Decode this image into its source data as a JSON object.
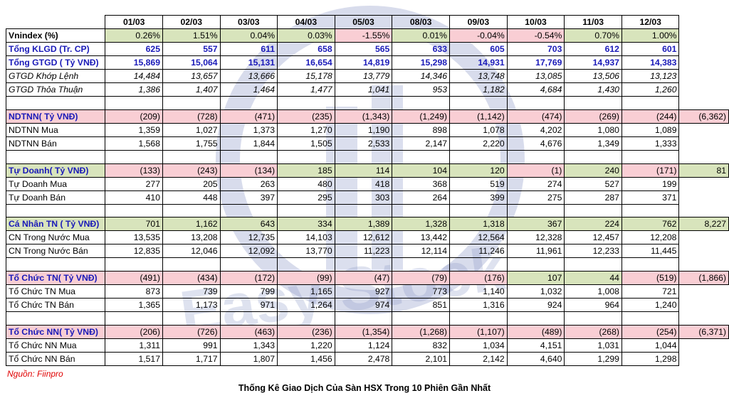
{
  "dates": [
    "01/03",
    "02/03",
    "03/03",
    "04/03",
    "05/03",
    "08/03",
    "09/03",
    "10/03",
    "11/03",
    "12/03"
  ],
  "rows": [
    {
      "type": "data",
      "label": "Vnindex (%)",
      "style": "bold",
      "values": [
        "0.26%",
        "1.51%",
        "0.04%",
        "0.03%",
        "-1.55%",
        "0.01%",
        "-0.04%",
        "-0.54%",
        "0.70%",
        "1.00%"
      ],
      "signs": [
        "pos",
        "pos",
        "pos",
        "pos",
        "neg",
        "pos",
        "neg",
        "neg",
        "pos",
        "pos"
      ],
      "total": null
    },
    {
      "type": "data",
      "label": "Tổng KLGD (Tr. CP)",
      "style": "blue",
      "values": [
        "625",
        "557",
        "611",
        "658",
        "565",
        "633",
        "605",
        "703",
        "612",
        "601"
      ],
      "signs": [],
      "total": null
    },
    {
      "type": "data",
      "label": "Tổng GTGD ( Tỷ VNĐ)",
      "style": "blue",
      "values": [
        "15,869",
        "15,064",
        "15,131",
        "16,654",
        "14,819",
        "15,298",
        "14,931",
        "17,769",
        "14,937",
        "14,383"
      ],
      "signs": [],
      "total": null
    },
    {
      "type": "data",
      "label": "GTGD Khớp Lệnh",
      "style": "ital",
      "values": [
        "14,484",
        "13,657",
        "13,666",
        "15,178",
        "13,779",
        "14,346",
        "13,748",
        "13,085",
        "13,506",
        "13,123"
      ],
      "signs": [],
      "total": null
    },
    {
      "type": "data",
      "label": "GTGD Thỏa Thuận",
      "style": "ital",
      "values": [
        "1,386",
        "1,407",
        "1,464",
        "1,477",
        "1,041",
        "953",
        "1,182",
        "4,684",
        "1,430",
        "1,260"
      ],
      "signs": [],
      "total": null
    },
    {
      "type": "spacer"
    },
    {
      "type": "data",
      "label": "NDTNN( Tỷ VNĐ)",
      "style": "section",
      "values": [
        "(209)",
        "(728)",
        "(471)",
        "(235)",
        "(1,343)",
        "(1,249)",
        "(1,142)",
        "(474)",
        "(269)",
        "(244)"
      ],
      "signs": [
        "neg",
        "neg",
        "neg",
        "neg",
        "neg",
        "neg",
        "neg",
        "neg",
        "neg",
        "neg"
      ],
      "total": "(6,362)",
      "totalSign": "neg"
    },
    {
      "type": "data",
      "label": "NDTNN Mua",
      "style": "",
      "values": [
        "1,359",
        "1,027",
        "1,373",
        "1,270",
        "1,190",
        "898",
        "1,078",
        "4,202",
        "1,080",
        "1,089"
      ],
      "signs": [],
      "total": null
    },
    {
      "type": "data",
      "label": "NDTNN Bán",
      "style": "",
      "values": [
        "1,568",
        "1,755",
        "1,844",
        "1,505",
        "2,533",
        "2,147",
        "2,220",
        "4,676",
        "1,349",
        "1,333"
      ],
      "signs": [],
      "total": null
    },
    {
      "type": "spacer"
    },
    {
      "type": "data",
      "label": "Tự Doanh( Tỷ VNĐ)",
      "style": "section",
      "values": [
        "(133)",
        "(243)",
        "(134)",
        "185",
        "114",
        "104",
        "120",
        "(1)",
        "240",
        "(171)"
      ],
      "signs": [
        "neg",
        "neg",
        "neg",
        "pos",
        "pos",
        "pos",
        "pos",
        "neg",
        "pos",
        "neg"
      ],
      "total": "81",
      "totalSign": "pos"
    },
    {
      "type": "data",
      "label": "Tự Doanh Mua",
      "style": "",
      "values": [
        "277",
        "205",
        "263",
        "480",
        "418",
        "368",
        "519",
        "274",
        "527",
        "199"
      ],
      "signs": [],
      "total": null
    },
    {
      "type": "data",
      "label": "Tự Doanh Bán",
      "style": "",
      "values": [
        "410",
        "448",
        "397",
        "295",
        "303",
        "264",
        "399",
        "275",
        "287",
        "371"
      ],
      "signs": [],
      "total": null
    },
    {
      "type": "spacer"
    },
    {
      "type": "data",
      "label": "Cá Nhân TN ( Tỷ VNĐ)",
      "style": "section",
      "values": [
        "701",
        "1,162",
        "643",
        "334",
        "1,389",
        "1,328",
        "1,318",
        "367",
        "224",
        "762"
      ],
      "signs": [
        "pos",
        "pos",
        "pos",
        "pos",
        "pos",
        "pos",
        "pos",
        "pos",
        "pos",
        "pos"
      ],
      "total": "8,227",
      "totalSign": "pos"
    },
    {
      "type": "data",
      "label": "CN Trong Nước Mua",
      "style": "",
      "values": [
        "13,535",
        "13,208",
        "12,735",
        "14,103",
        "12,612",
        "13,442",
        "12,564",
        "12,328",
        "12,457",
        "12,208"
      ],
      "signs": [],
      "total": null
    },
    {
      "type": "data",
      "label": "CN Trong Nước Bán",
      "style": "",
      "values": [
        "12,835",
        "12,046",
        "12,092",
        "13,770",
        "11,223",
        "12,114",
        "11,246",
        "11,961",
        "12,233",
        "11,445"
      ],
      "signs": [],
      "total": null
    },
    {
      "type": "spacer"
    },
    {
      "type": "data",
      "label": "Tổ Chức TN( Tỷ VNĐ)",
      "style": "section",
      "values": [
        "(491)",
        "(434)",
        "(172)",
        "(99)",
        "(47)",
        "(79)",
        "(176)",
        "107",
        "44",
        "(519)"
      ],
      "signs": [
        "neg",
        "neg",
        "neg",
        "neg",
        "neg",
        "neg",
        "neg",
        "pos",
        "pos",
        "neg"
      ],
      "total": "(1,866)",
      "totalSign": "neg"
    },
    {
      "type": "data",
      "label": "Tổ Chức TN Mua",
      "style": "",
      "values": [
        "873",
        "739",
        "799",
        "1,165",
        "927",
        "773",
        "1,140",
        "1,032",
        "1,008",
        "721"
      ],
      "signs": [],
      "total": null
    },
    {
      "type": "data",
      "label": "Tổ Chức TN Bán",
      "style": "",
      "values": [
        "1,365",
        "1,173",
        "971",
        "1,264",
        "974",
        "851",
        "1,316",
        "924",
        "964",
        "1,240"
      ],
      "signs": [],
      "total": null
    },
    {
      "type": "spacer"
    },
    {
      "type": "data",
      "label": "Tổ Chức NN( Tỷ VNĐ)",
      "style": "section",
      "values": [
        "(206)",
        "(726)",
        "(463)",
        "(236)",
        "(1,354)",
        "(1,268)",
        "(1,107)",
        "(489)",
        "(268)",
        "(254)"
      ],
      "signs": [
        "neg",
        "neg",
        "neg",
        "neg",
        "neg",
        "neg",
        "neg",
        "neg",
        "neg",
        "neg"
      ],
      "total": "(6,371)",
      "totalSign": "neg"
    },
    {
      "type": "data",
      "label": "Tổ Chức NN Mua",
      "style": "",
      "values": [
        "1,311",
        "991",
        "1,343",
        "1,220",
        "1,124",
        "832",
        "1,034",
        "4,151",
        "1,031",
        "1,044"
      ],
      "signs": [],
      "total": null
    },
    {
      "type": "data",
      "label": "Tổ Chức NN Bán",
      "style": "",
      "values": [
        "1,517",
        "1,717",
        "1,807",
        "1,456",
        "2,478",
        "2,101",
        "2,142",
        "4,640",
        "1,299",
        "1,298"
      ],
      "signs": [],
      "total": null
    }
  ],
  "source": "Nguồn: Fiinpro",
  "caption": "Thống Kê Giao Dịch Của Sàn HSX Trong 10 Phiên Gần Nhất",
  "watermark_text": "Easy Stock",
  "colors": {
    "positive_bg": "#d8e4bc",
    "negative_bg": "#f9ced4",
    "label_blue": "#1a1ab8",
    "source_red": "#e00000"
  }
}
